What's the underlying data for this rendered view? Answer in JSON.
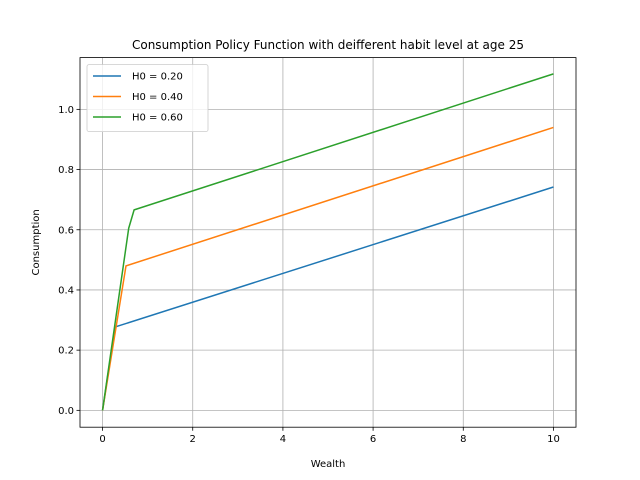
{
  "chart_data": {
    "type": "line",
    "title": "Consumption Policy Function with deifferent habit level at age 25",
    "xlabel": "Wealth",
    "ylabel": "Consumption",
    "xlim": [
      -0.5,
      10.5
    ],
    "ylim": [
      -0.056,
      1.172
    ],
    "grid": true,
    "legend_position": "top-left",
    "x_ticks": [
      0,
      2,
      4,
      6,
      8,
      10
    ],
    "x_tick_labels": [
      "0",
      "2",
      "4",
      "6",
      "8",
      "10"
    ],
    "y_ticks": [
      0.0,
      0.2,
      0.4,
      0.6,
      0.8,
      1.0
    ],
    "y_tick_labels": [
      "0.0",
      "0.2",
      "0.4",
      "0.6",
      "0.8",
      "1.0"
    ],
    "series": [
      {
        "name": "H0 = 0.20",
        "color": "#1f77b4",
        "x": [
          0,
          0.28,
          10
        ],
        "y": [
          0,
          0.277,
          0.742
        ]
      },
      {
        "name": "H0 = 0.40",
        "color": "#ff7f0e",
        "x": [
          0,
          0.52,
          10
        ],
        "y": [
          0,
          0.48,
          0.94
        ]
      },
      {
        "name": "H0 = 0.60",
        "color": "#2ca02c",
        "x": [
          0,
          0.58,
          0.7,
          10
        ],
        "y": [
          0,
          0.605,
          0.666,
          1.118
        ]
      }
    ]
  }
}
